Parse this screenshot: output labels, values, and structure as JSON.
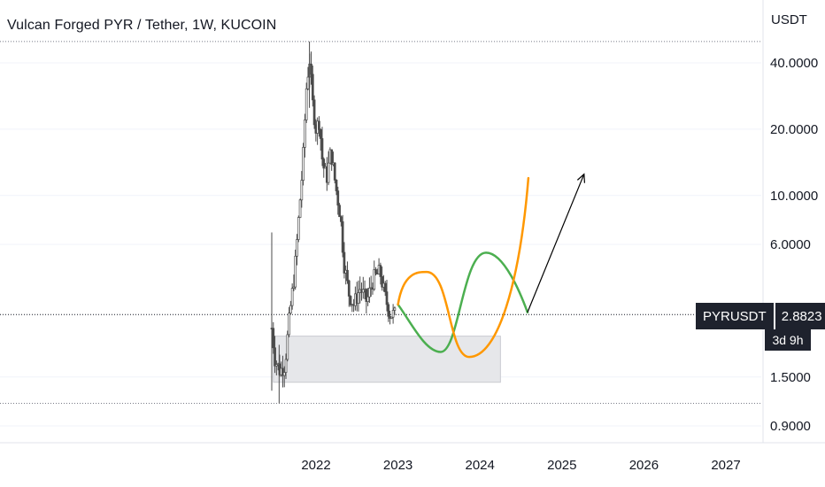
{
  "header": {
    "title": "Vulcan Forged PYR / Tether, 1W, KUCOIN",
    "currency": "USDT"
  },
  "price_tag": {
    "symbol": "PYRUSDT",
    "price": "2.8823",
    "countdown": "3d 9h"
  },
  "colors": {
    "green_wave": "#4caf50",
    "orange_wave": "#ff9800",
    "arrow": "#000000",
    "candle": "#4a4a4a",
    "zone": "#e6e7ea"
  },
  "chart_data": {
    "type": "candlestick",
    "title": "Vulcan Forged PYR / Tether, 1W, KUCOIN",
    "y_scale": "log",
    "y_ticks": [
      {
        "value": 40,
        "label": "40.0000"
      },
      {
        "value": 20,
        "label": "20.0000"
      },
      {
        "value": 10,
        "label": "10.0000"
      },
      {
        "value": 6,
        "label": "6.0000"
      },
      {
        "value": 1.5,
        "label": "1.5000"
      },
      {
        "value": 0.9,
        "label": "0.9000"
      }
    ],
    "x_ticks": [
      "2022",
      "2023",
      "2024",
      "2025",
      "2026",
      "2027"
    ],
    "current_price": 2.8823,
    "all_time_high": 50,
    "cycle_low": 1.14,
    "weekly_closes": [
      {
        "x": 2021.46,
        "y": 2.5
      },
      {
        "x": 2021.5,
        "y": 1.8
      },
      {
        "x": 2021.56,
        "y": 1.6
      },
      {
        "x": 2021.62,
        "y": 1.7
      },
      {
        "x": 2021.68,
        "y": 2.9
      },
      {
        "x": 2021.74,
        "y": 4.5
      },
      {
        "x": 2021.8,
        "y": 9
      },
      {
        "x": 2021.84,
        "y": 14
      },
      {
        "x": 2021.88,
        "y": 30
      },
      {
        "x": 2021.92,
        "y": 42
      },
      {
        "x": 2021.96,
        "y": 26
      },
      {
        "x": 2022.0,
        "y": 20
      },
      {
        "x": 2022.04,
        "y": 22
      },
      {
        "x": 2022.08,
        "y": 14
      },
      {
        "x": 2022.13,
        "y": 12
      },
      {
        "x": 2022.18,
        "y": 16
      },
      {
        "x": 2022.24,
        "y": 11
      },
      {
        "x": 2022.3,
        "y": 8
      },
      {
        "x": 2022.34,
        "y": 5
      },
      {
        "x": 2022.4,
        "y": 3.6
      },
      {
        "x": 2022.46,
        "y": 3.2
      },
      {
        "x": 2022.54,
        "y": 3.8
      },
      {
        "x": 2022.62,
        "y": 3.3
      },
      {
        "x": 2022.7,
        "y": 4.2
      },
      {
        "x": 2022.78,
        "y": 4.5
      },
      {
        "x": 2022.84,
        "y": 3.5
      },
      {
        "x": 2022.9,
        "y": 2.9
      },
      {
        "x": 2022.96,
        "y": 2.88
      }
    ],
    "demand_zone": {
      "x_start": 2021.48,
      "x_end": 2024.25,
      "y_low": 1.42,
      "y_high": 2.3
    },
    "annotations": [
      {
        "type": "projection_wave",
        "color": "green",
        "x_start": 2023.0,
        "x_end": 2024.58,
        "y_start": 3.2,
        "low": 1.95,
        "high": 5.5,
        "end": 2.95
      },
      {
        "type": "projection_wave",
        "color": "orange",
        "x_start": 2023.0,
        "x_end": 2024.58,
        "y_start": 3.2,
        "high": 4.5,
        "low": 1.85,
        "end": 12
      },
      {
        "type": "arrow",
        "x_start": 2024.58,
        "y_start": 2.95,
        "x_end": 2025.27,
        "y_end": 12.5
      }
    ]
  }
}
